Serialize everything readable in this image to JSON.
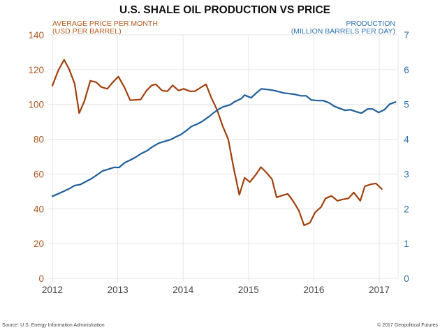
{
  "chart_data": {
    "type": "line",
    "title": "U.S. SHALE OIL PRODUCTION VS PRICE",
    "left_axis": {
      "label_line1": "AVERAGE PRICE PER MONTH",
      "label_line2": "(USD PER BARREL)",
      "range": [
        0,
        140
      ],
      "ticks": [
        "0",
        "20",
        "40",
        "60",
        "80",
        "100",
        "120",
        "140"
      ],
      "tick_values": [
        0,
        20,
        40,
        60,
        80,
        100,
        120,
        140
      ],
      "color": "#a8561f"
    },
    "right_axis": {
      "label_line1": "PRODUCTION",
      "label_line2": "(MILLION BARRELS PER DAY)",
      "range": [
        0,
        7
      ],
      "ticks": [
        "0",
        "1",
        "2",
        "3",
        "4",
        "5",
        "6",
        "7"
      ],
      "tick_values": [
        0,
        1,
        2,
        3,
        4,
        5,
        6,
        7
      ],
      "color": "#2a6fae"
    },
    "x_axis": {
      "ticks": [
        "2012",
        "2013",
        "2014",
        "2015",
        "2016",
        "2017"
      ],
      "tick_values": [
        2012,
        2013,
        2014,
        2015,
        2016,
        2017
      ],
      "range": [
        2012,
        2017.27
      ]
    },
    "grid": true,
    "series": [
      {
        "name": "Average price per month (USD per barrel)",
        "axis": "left",
        "color": "#a0400e",
        "points": [
          [
            2012.0,
            110.8
          ],
          [
            2012.09,
            119.5
          ],
          [
            2012.18,
            125.7
          ],
          [
            2012.26,
            120.0
          ],
          [
            2012.34,
            112.0
          ],
          [
            2012.41,
            95.0
          ],
          [
            2012.49,
            102.0
          ],
          [
            2012.58,
            113.6
          ],
          [
            2012.67,
            112.8
          ],
          [
            2012.75,
            110.0
          ],
          [
            2012.84,
            109.0
          ],
          [
            2012.93,
            113.0
          ],
          [
            2013.01,
            116.0
          ],
          [
            2013.1,
            110.0
          ],
          [
            2013.19,
            102.4
          ],
          [
            2013.26,
            102.6
          ],
          [
            2013.35,
            102.8
          ],
          [
            2013.44,
            108.0
          ],
          [
            2013.52,
            111.0
          ],
          [
            2013.58,
            111.6
          ],
          [
            2013.68,
            108.0
          ],
          [
            2013.76,
            107.6
          ],
          [
            2013.84,
            111.0
          ],
          [
            2013.93,
            108.0
          ],
          [
            2014.01,
            109.0
          ],
          [
            2014.1,
            107.6
          ],
          [
            2014.18,
            107.6
          ],
          [
            2014.26,
            109.5
          ],
          [
            2014.35,
            111.6
          ],
          [
            2014.43,
            104.0
          ],
          [
            2014.52,
            96.8
          ],
          [
            2014.6,
            88.0
          ],
          [
            2014.69,
            80.0
          ],
          [
            2014.77,
            64.0
          ],
          [
            2014.86,
            48.0
          ],
          [
            2014.94,
            57.8
          ],
          [
            2015.02,
            55.4
          ],
          [
            2015.11,
            59.5
          ],
          [
            2015.19,
            64.0
          ],
          [
            2015.27,
            61.0
          ],
          [
            2015.36,
            57.0
          ],
          [
            2015.43,
            46.6
          ],
          [
            2015.53,
            47.8
          ],
          [
            2015.6,
            48.6
          ],
          [
            2015.68,
            44.6
          ],
          [
            2015.77,
            39.0
          ],
          [
            2015.85,
            30.5
          ],
          [
            2015.94,
            32.0
          ],
          [
            2016.02,
            38.0
          ],
          [
            2016.11,
            41.0
          ],
          [
            2016.18,
            46.0
          ],
          [
            2016.27,
            47.4
          ],
          [
            2016.36,
            44.6
          ],
          [
            2016.44,
            45.4
          ],
          [
            2016.53,
            46.0
          ],
          [
            2016.61,
            49.4
          ],
          [
            2016.71,
            44.6
          ],
          [
            2016.78,
            53.0
          ],
          [
            2016.88,
            54.2
          ],
          [
            2016.95,
            54.6
          ],
          [
            2017.04,
            51.4
          ]
        ]
      },
      {
        "name": "Production (million barrels per day)",
        "axis": "right",
        "color": "#1f5d99",
        "points": [
          [
            2012.0,
            2.36
          ],
          [
            2012.09,
            2.43
          ],
          [
            2012.17,
            2.5
          ],
          [
            2012.26,
            2.58
          ],
          [
            2012.34,
            2.67
          ],
          [
            2012.43,
            2.7
          ],
          [
            2012.51,
            2.78
          ],
          [
            2012.6,
            2.87
          ],
          [
            2012.68,
            2.97
          ],
          [
            2012.77,
            3.09
          ],
          [
            2012.86,
            3.14
          ],
          [
            2012.94,
            3.19
          ],
          [
            2013.02,
            3.19
          ],
          [
            2013.11,
            3.33
          ],
          [
            2013.2,
            3.41
          ],
          [
            2013.28,
            3.49
          ],
          [
            2013.35,
            3.58
          ],
          [
            2013.45,
            3.67
          ],
          [
            2013.53,
            3.78
          ],
          [
            2013.63,
            3.89
          ],
          [
            2013.72,
            3.94
          ],
          [
            2013.81,
            3.99
          ],
          [
            2013.89,
            4.07
          ],
          [
            2013.96,
            4.13
          ],
          [
            2014.05,
            4.25
          ],
          [
            2014.13,
            4.37
          ],
          [
            2014.22,
            4.44
          ],
          [
            2014.29,
            4.51
          ],
          [
            2014.38,
            4.63
          ],
          [
            2014.46,
            4.75
          ],
          [
            2014.53,
            4.85
          ],
          [
            2014.61,
            4.93
          ],
          [
            2014.72,
            4.99
          ],
          [
            2014.79,
            5.08
          ],
          [
            2014.89,
            5.17
          ],
          [
            2014.94,
            5.27
          ],
          [
            2015.04,
            5.19
          ],
          [
            2015.13,
            5.35
          ],
          [
            2015.2,
            5.45
          ],
          [
            2015.29,
            5.43
          ],
          [
            2015.37,
            5.41
          ],
          [
            2015.46,
            5.37
          ],
          [
            2015.54,
            5.33
          ],
          [
            2015.63,
            5.31
          ],
          [
            2015.71,
            5.29
          ],
          [
            2015.8,
            5.25
          ],
          [
            2015.88,
            5.25
          ],
          [
            2015.96,
            5.13
          ],
          [
            2016.05,
            5.11
          ],
          [
            2016.14,
            5.11
          ],
          [
            2016.23,
            5.05
          ],
          [
            2016.31,
            4.95
          ],
          [
            2016.39,
            4.89
          ],
          [
            2016.48,
            4.83
          ],
          [
            2016.56,
            4.85
          ],
          [
            2016.65,
            4.79
          ],
          [
            2016.73,
            4.75
          ],
          [
            2016.82,
            4.87
          ],
          [
            2016.9,
            4.87
          ],
          [
            2016.99,
            4.77
          ],
          [
            2017.08,
            4.85
          ],
          [
            2017.16,
            5.01
          ],
          [
            2017.25,
            5.07
          ]
        ]
      }
    ]
  },
  "footer": {
    "source": "Source: U.S. Energy Information Administration",
    "copyright": "© 2017 Geopolitical Futures"
  }
}
